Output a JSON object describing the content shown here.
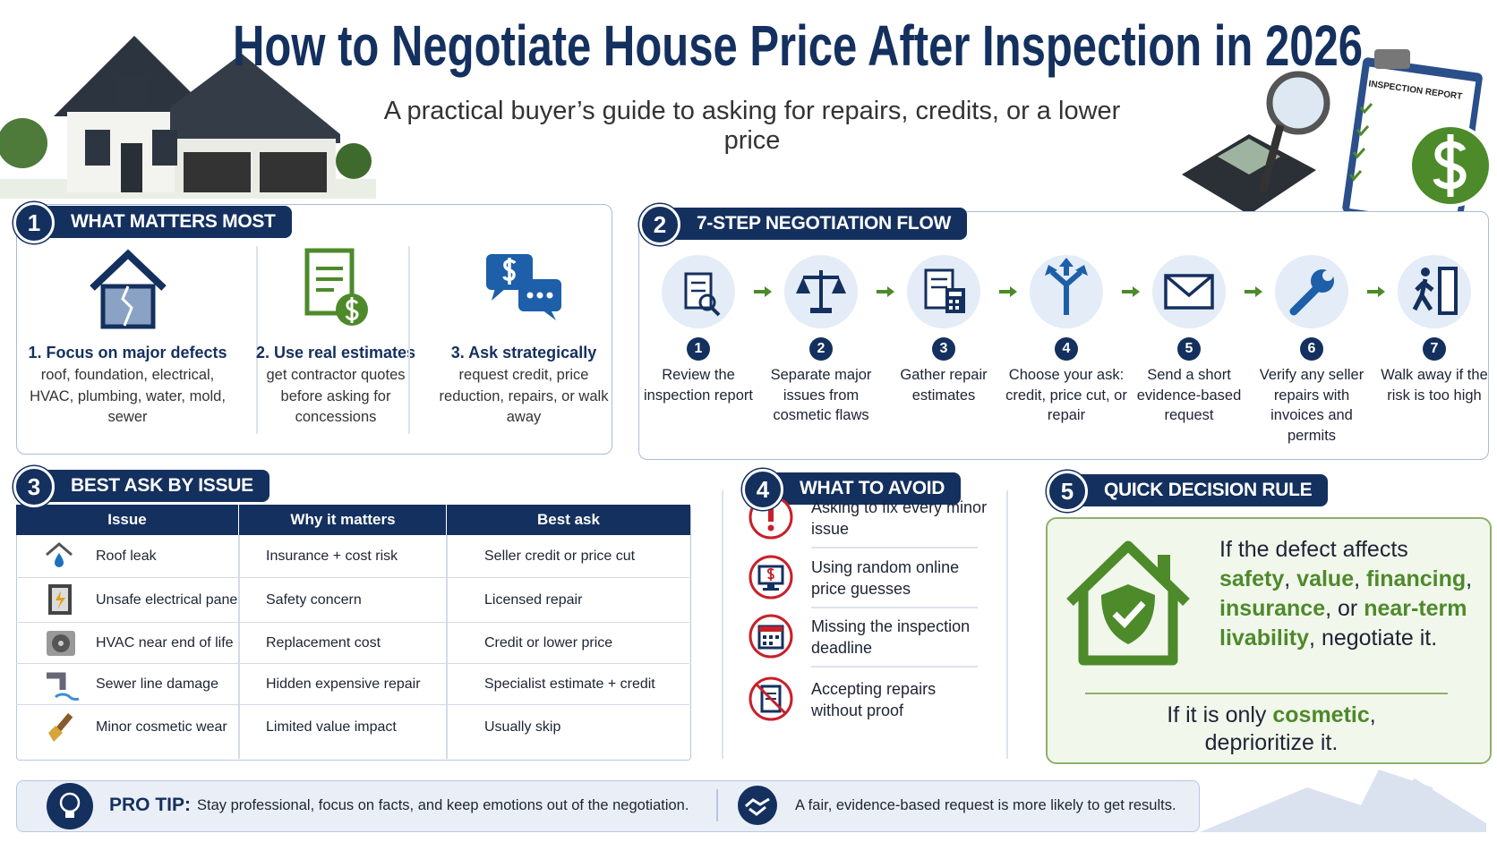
{
  "header": {
    "title": "How to Negotiate House Price After Inspection in 2026",
    "subtitle": "A practical buyer’s guide to asking for repairs, credits, or a lower price",
    "report_label": "INSPECTION REPORT"
  },
  "what_matters": {
    "number": "1",
    "heading": "WHAT MATTERS MOST",
    "items": [
      {
        "title": "1. Focus on major defects",
        "text": "roof, foundation, electrical, HVAC, plumbing, water, mold, sewer"
      },
      {
        "title": "2. Use real estimates",
        "text": "get contractor quotes before asking for concessions"
      },
      {
        "title": "3. Ask strategically",
        "text": "request credit, price reduction, repairs, or walk away"
      }
    ]
  },
  "flow": {
    "number": "2",
    "heading": "7-STEP NEGOTIATION FLOW",
    "steps": [
      {
        "number": "1",
        "text": "Review the inspection report"
      },
      {
        "number": "2",
        "text": "Separate major issues from cosmetic flaws"
      },
      {
        "number": "3",
        "text": "Gather repair estimates"
      },
      {
        "number": "4",
        "text": "Choose your ask: credit, price cut, or repair"
      },
      {
        "number": "5",
        "text": "Send a short evidence-based request"
      },
      {
        "number": "6",
        "text": "Verify any seller repairs with invoices and permits"
      },
      {
        "number": "7",
        "text": "Walk away if the risk is too high"
      }
    ]
  },
  "best_ask": {
    "number": "3",
    "heading": "BEST ASK BY ISSUE",
    "columns": [
      "Issue",
      "Why it matters",
      "Best ask"
    ],
    "rows": [
      [
        "Roof leak",
        "Insurance + cost risk",
        "Seller credit or price cut"
      ],
      [
        "Unsafe electrical panel",
        "Safety concern",
        "Licensed repair"
      ],
      [
        "HVAC near end of life",
        "Replacement cost",
        "Credit or lower price"
      ],
      [
        "Sewer line damage",
        "Hidden expensive repair",
        "Specialist estimate + credit"
      ],
      [
        "Minor cosmetic wear",
        "Limited value impact",
        "Usually skip"
      ]
    ]
  },
  "avoid": {
    "number": "4",
    "heading": "WHAT TO AVOID",
    "items": [
      "Asking to fix every minor issue",
      "Using random online price guesses",
      "Missing the inspection deadline",
      "Accepting repairs without proof"
    ]
  },
  "decision": {
    "number": "5",
    "heading": "QUICK DECISION RULE",
    "rule": [
      "If the defect affects ",
      "safety",
      ", ",
      "value",
      ", ",
      "financing",
      ", ",
      "insurance",
      ", or ",
      "near-term livability",
      ", negotiate it."
    ],
    "fallback": [
      "If it is only ",
      "cosmetic",
      ", deprioritize it."
    ]
  },
  "pro_tip": {
    "label": "PRO TIP:",
    "text": "Stay professional, focus on facts, and keep emotions out of the negotiation.",
    "note": "A fair, evidence-based request is more likely to get results."
  }
}
